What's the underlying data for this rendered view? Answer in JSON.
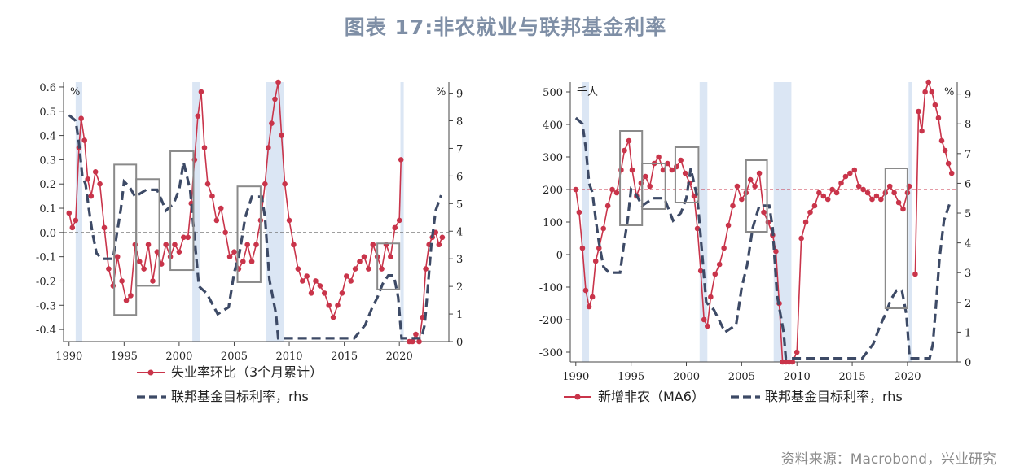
{
  "title": "图表 17:非农就业与联邦基金利率",
  "source": "资料来源：Macrobond，兴业研究",
  "colors": {
    "red": "#c9344a",
    "navy": "#3d4a66",
    "box": "#8a8a8a",
    "recession": "#dbe6f4",
    "title": "#7f8fa6"
  },
  "chart_data": [
    {
      "type": "line",
      "xlim": [
        1989.5,
        2024.5
      ],
      "x_ticks": [
        1990,
        1995,
        2000,
        2005,
        2010,
        2015,
        2020
      ],
      "ylim_left": [
        -0.45,
        0.62
      ],
      "ylim_right": [
        0,
        9.4
      ],
      "y_ticks_left": [
        "0.6",
        "0.5",
        "0.4",
        "0.3",
        "0.2",
        "0.1",
        "0.0",
        "-0.1",
        "-0.2",
        "-0.3",
        "-0.4"
      ],
      "y_ticks_right": [
        "9",
        "8",
        "7",
        "6",
        "5",
        "4",
        "3",
        "2",
        "1",
        "0"
      ],
      "left_unit": "%",
      "right_unit": "%",
      "reference_line": 0,
      "recessions": [
        [
          1990.6,
          1991.2
        ],
        [
          2001.2,
          2001.9
        ],
        [
          2007.9,
          2009.5
        ],
        [
          2020.1,
          2020.4
        ]
      ],
      "boxes": [
        [
          1994.1,
          -0.34,
          1996.1,
          0.28
        ],
        [
          1996.1,
          -0.22,
          1998.2,
          0.22
        ],
        [
          1999.2,
          -0.155,
          2001.3,
          0.335
        ],
        [
          2005.3,
          -0.205,
          2007.4,
          0.19
        ],
        [
          2018.0,
          -0.235,
          2020.0,
          -0.045
        ]
      ],
      "series": [
        {
          "name": "失业率环比（3个月累计）",
          "axis": "left",
          "x": [
            1990,
            1990.3,
            1990.6,
            1990.9,
            1991.1,
            1991.4,
            1991.7,
            1992,
            1992.4,
            1992.8,
            1993.2,
            1993.6,
            1994,
            1994.4,
            1994.8,
            1995.2,
            1995.6,
            1996,
            1996.4,
            1996.8,
            1997.2,
            1997.6,
            1998,
            1998.4,
            1998.8,
            1999.2,
            1999.6,
            2000,
            2000.4,
            2000.8,
            2001.1,
            2001.4,
            2001.7,
            2002,
            2002.3,
            2002.6,
            2003,
            2003.4,
            2003.8,
            2004.2,
            2004.6,
            2005,
            2005.4,
            2005.8,
            2006.2,
            2006.6,
            2007,
            2007.4,
            2007.8,
            2008.1,
            2008.4,
            2008.7,
            2009,
            2009.3,
            2009.6,
            2010,
            2010.4,
            2010.8,
            2011.2,
            2011.6,
            2012,
            2012.4,
            2012.8,
            2013.2,
            2013.6,
            2014,
            2014.4,
            2014.8,
            2015.2,
            2015.6,
            2016,
            2016.4,
            2016.8,
            2017.2,
            2017.6,
            2018,
            2018.4,
            2018.8,
            2019.2,
            2019.6,
            2020.0,
            2020.15
          ],
          "values": [
            0.08,
            0.02,
            0.05,
            0.35,
            0.47,
            0.38,
            0.22,
            0.15,
            0.25,
            0.2,
            0.02,
            -0.15,
            -0.22,
            -0.1,
            -0.2,
            -0.28,
            -0.26,
            -0.05,
            -0.12,
            -0.15,
            -0.05,
            -0.2,
            -0.08,
            -0.13,
            -0.05,
            -0.1,
            -0.05,
            -0.08,
            -0.02,
            -0.02,
            0.12,
            0.3,
            0.48,
            0.58,
            0.35,
            0.2,
            0.15,
            0.05,
            0.1,
            0.0,
            -0.1,
            -0.08,
            -0.15,
            -0.12,
            -0.05,
            -0.12,
            -0.05,
            0.05,
            0.2,
            0.35,
            0.45,
            0.55,
            0.62,
            0.4,
            0.2,
            0.05,
            -0.05,
            -0.15,
            -0.2,
            -0.18,
            -0.25,
            -0.2,
            -0.22,
            -0.25,
            -0.3,
            -0.35,
            -0.3,
            -0.25,
            -0.18,
            -0.2,
            -0.15,
            -0.12,
            -0.1,
            -0.15,
            -0.05,
            -0.1,
            -0.15,
            -0.05,
            -0.1,
            0.02,
            0.05,
            0.3
          ]
        },
        {
          "name": "失业率环比（3个月累计）",
          "axis": "left",
          "x": [
            2020.9,
            2021.2,
            2021.5,
            2021.8,
            2022.1,
            2022.4,
            2022.7,
            2023,
            2023.3,
            2023.6,
            2023.9
          ],
          "values": [
            -0.5,
            -0.45,
            -0.42,
            -0.45,
            -0.35,
            -0.15,
            -0.05,
            -0.02,
            0.0,
            -0.05,
            -0.02
          ]
        },
        {
          "name": "联邦基金目标利率，rhs",
          "axis": "right",
          "x": [
            1990,
            1990.6,
            1990.9,
            1991.2,
            1991.5,
            1991.8,
            1992.1,
            1992.5,
            1993,
            1994,
            1994.3,
            1994.7,
            1995,
            1995.5,
            1996,
            1997,
            1998,
            1998.8,
            1999.5,
            2000,
            2000.4,
            2001,
            2001.4,
            2001.8,
            2002.5,
            2003.5,
            2004.5,
            2005,
            2005.5,
            2006,
            2006.6,
            2007.5,
            2007.8,
            2008.2,
            2008.8,
            2009,
            2015.9,
            2016.9,
            2017.5,
            2018,
            2018.5,
            2019,
            2019.5,
            2019.9,
            2020.2,
            2021,
            2022,
            2022.3,
            2022.6,
            2022.9,
            2023.3,
            2023.8
          ],
          "values": [
            8.2,
            8.0,
            7.2,
            6.0,
            5.7,
            4.8,
            4.0,
            3.2,
            3.0,
            3.0,
            3.8,
            4.8,
            5.8,
            5.6,
            5.25,
            5.5,
            5.5,
            4.75,
            5.0,
            5.5,
            6.5,
            5.5,
            3.75,
            2.0,
            1.75,
            1.0,
            1.25,
            2.5,
            3.25,
            4.5,
            5.25,
            5.25,
            4.5,
            2.25,
            1.0,
            0.12,
            0.12,
            0.6,
            1.2,
            1.6,
            2.1,
            2.4,
            2.4,
            1.6,
            0.12,
            0.12,
            0.12,
            0.6,
            2.0,
            3.5,
            4.75,
            5.3
          ]
        }
      ],
      "legend": [
        "失业率环比（3个月累计）",
        "联邦基金目标利率，rhs"
      ]
    },
    {
      "type": "line",
      "xlim": [
        1989.5,
        2024.5
      ],
      "x_ticks": [
        1990,
        1995,
        2000,
        2005,
        2010,
        2015,
        2020
      ],
      "ylim_left": [
        -330,
        530
      ],
      "ylim_right": [
        0,
        9.4
      ],
      "y_ticks_left": [
        "500",
        "400",
        "300",
        "200",
        "100",
        "0",
        "-100",
        "-200",
        "-300"
      ],
      "y_ticks_right": [
        "9",
        "8",
        "7",
        "6",
        "5",
        "4",
        "3",
        "2",
        "1",
        "0"
      ],
      "left_unit": "千人",
      "right_unit": "%",
      "reference_line": 200,
      "recessions": [
        [
          1990.6,
          1991.2
        ],
        [
          2001.2,
          2001.9
        ],
        [
          2007.9,
          2009.5
        ],
        [
          2020.1,
          2020.4
        ]
      ],
      "boxes": [
        [
          1994.0,
          90,
          1996.0,
          380
        ],
        [
          1996.0,
          140,
          1998.1,
          280
        ],
        [
          1999.0,
          160,
          2001.1,
          330
        ],
        [
          2005.4,
          70,
          2007.3,
          290
        ],
        [
          2018.0,
          -165,
          2020.0,
          265
        ]
      ],
      "series": [
        {
          "name": "新增非农（MA6）",
          "axis": "left",
          "x": [
            1990,
            1990.3,
            1990.6,
            1990.9,
            1991.2,
            1991.5,
            1991.8,
            1992.1,
            1992.5,
            1992.9,
            1993.3,
            1993.7,
            1994.1,
            1994.4,
            1994.8,
            1995.1,
            1995.5,
            1995.9,
            1996.3,
            1996.7,
            1997.1,
            1997.5,
            1997.9,
            1998.3,
            1998.7,
            1999.1,
            1999.5,
            1999.9,
            2000.3,
            2000.7,
            2001.0,
            2001.3,
            2001.6,
            2001.9,
            2002.2,
            2002.6,
            2003,
            2003.4,
            2003.8,
            2004.2,
            2004.6,
            2005,
            2005.4,
            2005.8,
            2006.2,
            2006.6,
            2007,
            2007.4,
            2007.8,
            2008.1,
            2008.4,
            2008.7,
            2009,
            2009.3,
            2009.6,
            2010,
            2010.4,
            2010.8,
            2011.2,
            2011.6,
            2012,
            2012.4,
            2012.8,
            2013.2,
            2013.6,
            2014,
            2014.4,
            2014.8,
            2015.2,
            2015.6,
            2016,
            2016.4,
            2016.8,
            2017.2,
            2017.6,
            2018,
            2018.4,
            2018.8,
            2019.2,
            2019.6,
            2020.0,
            2020.15
          ],
          "values": [
            200,
            130,
            20,
            -110,
            -160,
            -130,
            -20,
            20,
            80,
            150,
            200,
            190,
            260,
            320,
            350,
            260,
            180,
            220,
            240,
            210,
            280,
            300,
            260,
            280,
            260,
            270,
            290,
            250,
            220,
            180,
            80,
            -50,
            -200,
            -220,
            -130,
            -60,
            -30,
            20,
            90,
            150,
            210,
            170,
            190,
            230,
            210,
            250,
            130,
            100,
            60,
            10,
            -150,
            -330,
            -330,
            -450,
            -400,
            -300,
            50,
            100,
            130,
            150,
            190,
            180,
            170,
            200,
            190,
            220,
            240,
            250,
            260,
            210,
            200,
            190,
            170,
            180,
            170,
            190,
            210,
            190,
            160,
            140,
            190,
            210
          ]
        },
        {
          "name": "新增非农（MA6）",
          "axis": "left",
          "x": [
            2020.7,
            2021,
            2021.3,
            2021.6,
            2021.9,
            2022.2,
            2022.5,
            2022.8,
            2023.1,
            2023.4,
            2023.7,
            2024
          ],
          "values": [
            -60,
            440,
            380,
            500,
            530,
            500,
            460,
            420,
            350,
            320,
            280,
            250
          ]
        },
        {
          "name": "联邦基金目标利率，rhs",
          "axis": "right",
          "x": [
            1990,
            1990.6,
            1990.9,
            1991.2,
            1991.5,
            1991.8,
            1992.1,
            1992.5,
            1993,
            1994,
            1994.3,
            1994.7,
            1995,
            1995.5,
            1996,
            1997,
            1998,
            1998.8,
            1999.5,
            2000,
            2000.4,
            2001,
            2001.4,
            2001.8,
            2002.5,
            2003.5,
            2004.5,
            2005,
            2005.5,
            2006,
            2006.6,
            2007.5,
            2007.8,
            2008.2,
            2008.8,
            2009,
            2015.9,
            2016.9,
            2017.5,
            2018,
            2018.5,
            2019,
            2019.5,
            2019.9,
            2020.2,
            2021,
            2022,
            2022.3,
            2022.6,
            2022.9,
            2023.3,
            2023.8
          ],
          "values": [
            8.2,
            8.0,
            7.2,
            6.0,
            5.7,
            4.8,
            4.0,
            3.2,
            3.0,
            3.0,
            3.8,
            4.8,
            5.8,
            5.6,
            5.25,
            5.5,
            5.5,
            4.75,
            5.0,
            5.5,
            6.5,
            5.5,
            3.75,
            2.0,
            1.75,
            1.0,
            1.25,
            2.5,
            3.25,
            4.5,
            5.25,
            5.25,
            4.5,
            2.25,
            1.0,
            0.12,
            0.12,
            0.6,
            1.2,
            1.6,
            2.1,
            2.4,
            2.4,
            1.6,
            0.12,
            0.12,
            0.12,
            0.6,
            2.0,
            3.5,
            4.75,
            5.3
          ]
        }
      ],
      "legend": [
        "新增非农（MA6）",
        "联邦基金目标利率，rhs"
      ]
    }
  ]
}
